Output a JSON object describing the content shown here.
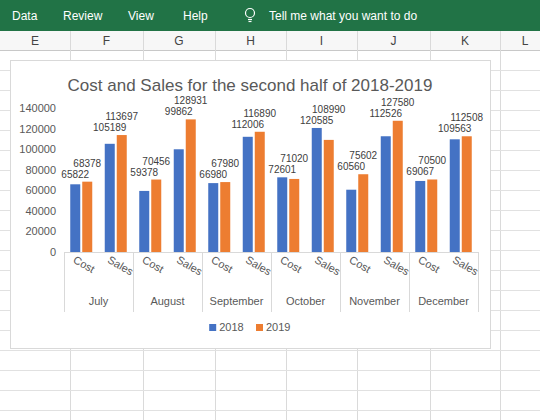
{
  "spreadsheet": {
    "menu": [
      "Data",
      "Review",
      "View",
      "Help"
    ],
    "search_hint": "Tell me what you want to do",
    "columns": [
      "E",
      "F",
      "G",
      "H",
      "I",
      "J",
      "K",
      "L"
    ]
  },
  "chart_data": {
    "type": "bar",
    "title": "Cost and Sales for the second half of 2018-2019",
    "categories": [
      "Cost",
      "Sales",
      "Cost",
      "Sales",
      "Cost",
      "Sales",
      "Cost",
      "Sales",
      "Cost",
      "Sales",
      "Cost",
      "Sales"
    ],
    "category_groups": [
      "July",
      "August",
      "September",
      "October",
      "November",
      "December"
    ],
    "series": [
      {
        "name": "2018",
        "color": "#4472c4",
        "values": [
          65822,
          105189,
          59378,
          99862,
          66980,
          112006,
          72601,
          120585,
          60560,
          112526,
          69067,
          109563
        ]
      },
      {
        "name": "2019",
        "color": "#ed7d31",
        "values": [
          68378,
          113697,
          70456,
          128931,
          67980,
          116890,
          71020,
          108990,
          75602,
          127580,
          70500,
          112508
        ]
      }
    ],
    "ylim": [
      0,
      140000
    ],
    "yticks": [
      0,
      20000,
      40000,
      60000,
      80000,
      100000,
      120000,
      140000
    ],
    "grid": false,
    "legend": "bottom",
    "data_labels": true
  }
}
